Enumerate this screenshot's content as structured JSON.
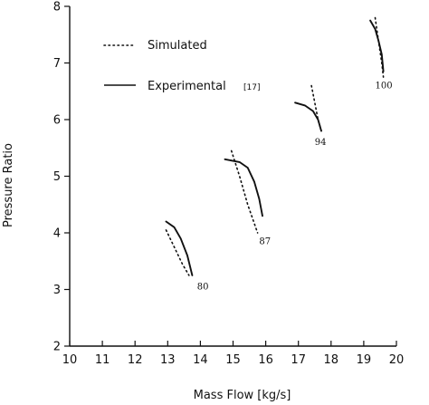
{
  "chart_data": {
    "type": "line",
    "title": "",
    "xlabel": "Mass Flow [kg/s]",
    "ylabel": "Pressure Ratio",
    "xlim": [
      10,
      20
    ],
    "ylim": [
      2,
      8
    ],
    "xticks": [
      10,
      11,
      12,
      13,
      14,
      15,
      16,
      17,
      18,
      19,
      20
    ],
    "yticks": [
      2,
      3,
      4,
      5,
      6,
      7,
      8
    ],
    "grid": false,
    "legend_position": "top-left",
    "legend": [
      {
        "name": "Simulated",
        "style": "dotted"
      },
      {
        "name": "Experimental",
        "style": "solid",
        "ref": "[17]"
      }
    ],
    "speed_labels": [
      {
        "text": "80",
        "x": 13.9,
        "y": 3.0
      },
      {
        "text": "87",
        "x": 15.8,
        "y": 3.8
      },
      {
        "text": "94",
        "x": 17.5,
        "y": 5.55
      },
      {
        "text": "100",
        "x": 19.35,
        "y": 6.55
      }
    ],
    "series": [
      {
        "name": "Simulated",
        "line": "80",
        "style": "dotted",
        "x": [
          12.95,
          13.2,
          13.45,
          13.65
        ],
        "y": [
          4.05,
          3.75,
          3.45,
          3.25
        ]
      },
      {
        "name": "Experimental",
        "line": "80",
        "style": "solid",
        "x": [
          12.95,
          13.2,
          13.4,
          13.6,
          13.75
        ],
        "y": [
          4.2,
          4.1,
          3.9,
          3.6,
          3.25
        ]
      },
      {
        "name": "Simulated",
        "line": "87",
        "style": "dotted",
        "x": [
          14.95,
          15.2,
          15.45,
          15.75
        ],
        "y": [
          5.45,
          5.0,
          4.5,
          4.0
        ]
      },
      {
        "name": "Experimental",
        "line": "87",
        "style": "solid",
        "x": [
          14.75,
          15.2,
          15.45,
          15.65,
          15.8,
          15.9
        ],
        "y": [
          5.3,
          5.25,
          5.15,
          4.9,
          4.6,
          4.3
        ]
      },
      {
        "name": "Simulated",
        "line": "94",
        "style": "dotted",
        "x": [
          17.4,
          17.5,
          17.6,
          17.7
        ],
        "y": [
          6.6,
          6.3,
          6.0,
          5.8
        ]
      },
      {
        "name": "Experimental",
        "line": "94",
        "style": "solid",
        "x": [
          16.9,
          17.2,
          17.45,
          17.6,
          17.7
        ],
        "y": [
          6.3,
          6.25,
          6.15,
          6.0,
          5.8
        ]
      },
      {
        "name": "Simulated",
        "line": "100",
        "style": "dotted",
        "x": [
          19.35,
          19.45,
          19.55,
          19.6
        ],
        "y": [
          7.8,
          7.4,
          7.0,
          6.75
        ]
      },
      {
        "name": "Experimental",
        "line": "100",
        "style": "solid",
        "x": [
          19.2,
          19.35,
          19.45,
          19.55,
          19.6
        ],
        "y": [
          7.75,
          7.6,
          7.4,
          7.15,
          6.85
        ]
      }
    ]
  }
}
